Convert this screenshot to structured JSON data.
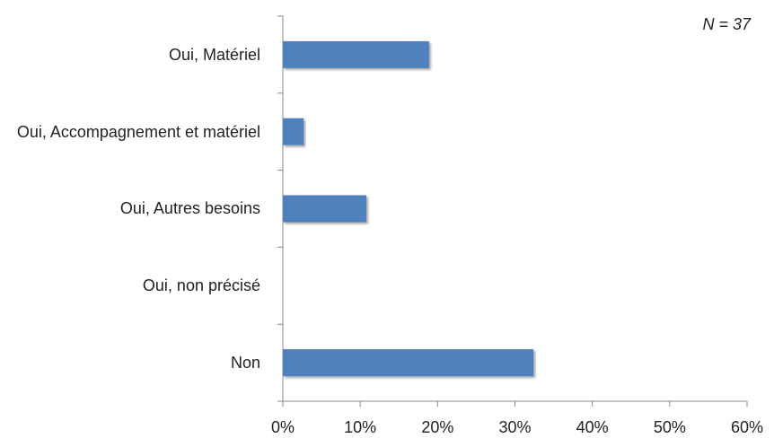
{
  "chart_data": {
    "type": "bar",
    "orientation": "horizontal",
    "annotation": "N = 37",
    "categories": [
      "Oui, Matériel",
      "Oui, Accompagnement et matériel",
      "Oui, Autres besoins",
      "Oui, non précisé",
      "Non"
    ],
    "values": [
      18.9,
      2.7,
      10.8,
      0,
      32.4
    ],
    "color": "#4f81bd",
    "xlim": [
      0,
      60
    ],
    "xticks": [
      {
        "value": 0,
        "label": "0%"
      },
      {
        "value": 10,
        "label": "10%"
      },
      {
        "value": 20,
        "label": "20%"
      },
      {
        "value": 30,
        "label": "30%"
      },
      {
        "value": 40,
        "label": "40%"
      },
      {
        "value": 50,
        "label": "50%"
      },
      {
        "value": 60,
        "label": "60%"
      }
    ],
    "grid": false
  }
}
